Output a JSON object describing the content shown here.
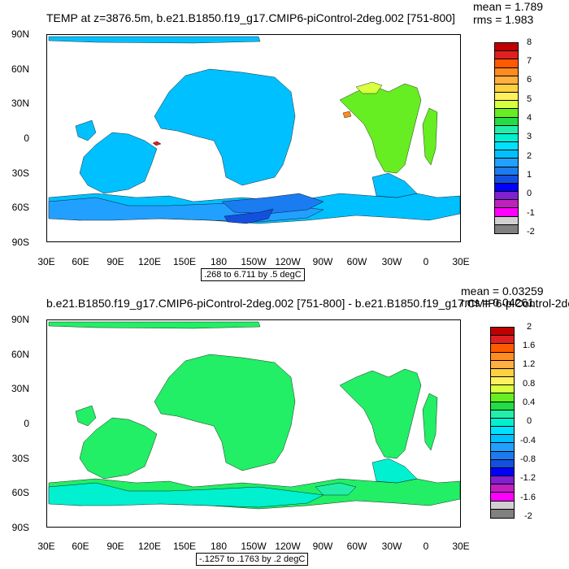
{
  "panels": [
    {
      "title": "TEMP at z=3876.5m, b.e21.B1850.f19_g17.CMIP6-piControl-2deg.002 [751-800]",
      "mean": "mean = 1.789",
      "rms": "rms = 1.983",
      "range_label": ".268 to 6.711 by .5 degC",
      "y_labels": [
        "90N",
        "60N",
        "30N",
        "0",
        "30S",
        "60S",
        "90S"
      ],
      "x_labels": [
        "30E",
        "60E",
        "90E",
        "120E",
        "150E",
        "180",
        "150W",
        "120W",
        "90W",
        "60W",
        "30W",
        "0",
        "30E"
      ],
      "colorbar_labels": [
        "8",
        "7",
        "6",
        "5",
        "4",
        "3",
        "2",
        "1",
        "0",
        "-1",
        "-2"
      ],
      "colorbar_colors": [
        "#c00000",
        "#e02020",
        "#ff5a00",
        "#ff8c20",
        "#ffb040",
        "#ffd040",
        "#fff060",
        "#d8ff40",
        "#66ee22",
        "#22dd44",
        "#22eeaa",
        "#00f0d0",
        "#00e0ff",
        "#00c0ff",
        "#22a0ff",
        "#1a7cf0",
        "#1450e0",
        "#0000ff",
        "#8020d0",
        "#c020c0",
        "#ff00ff",
        "#d0d0d0",
        "#808080"
      ],
      "fill_main": "#00c0ff",
      "fill_second": "#22a0ff",
      "fill_third": "#1a7cf0"
    },
    {
      "title": "b.e21.B1850.f19_g17.CMIP6-piControl-2deg.002 [751-800] - b.e21.B1850.f19_g17.CMIP6-piControl-2de",
      "mean": "mean = 0.03259",
      "rms": "rms = 0.04261",
      "range_label": "-.1257 to .1763 by .2 degC",
      "y_labels": [
        "90N",
        "60N",
        "30N",
        "0",
        "30S",
        "60S",
        "90S"
      ],
      "x_labels": [
        "30E",
        "60E",
        "90E",
        "120E",
        "150E",
        "180",
        "150W",
        "120W",
        "90W",
        "60W",
        "30W",
        "0",
        "30E"
      ],
      "colorbar_labels": [
        "2",
        "1.6",
        "1.2",
        "0.8",
        "0.4",
        "0",
        "-0.4",
        "-0.8",
        "-1.2",
        "-1.6",
        "-2"
      ],
      "colorbar_colors": [
        "#c00000",
        "#e02020",
        "#ff5a00",
        "#ff8c20",
        "#ffb040",
        "#ffd040",
        "#fff060",
        "#d8ff40",
        "#66ee22",
        "#22dd44",
        "#22eeaa",
        "#00f0d0",
        "#00e0ff",
        "#00c0ff",
        "#22a0ff",
        "#1a7cf0",
        "#1450e0",
        "#0000ff",
        "#8020d0",
        "#c020c0",
        "#ff00ff",
        "#d0d0d0",
        "#808080"
      ],
      "fill_main": "#22ee66",
      "fill_second": "#00f0d0",
      "fill_third": "#22eeaa"
    }
  ]
}
